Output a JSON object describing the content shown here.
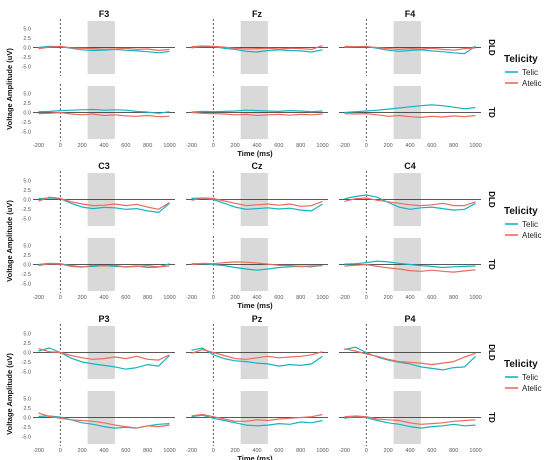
{
  "colors": {
    "telic": "#12b5c0",
    "atelic": "#ef6a5d",
    "window": "#d9d9d9"
  },
  "legend": {
    "title": "Telicity",
    "items": [
      "Telic",
      "Atelic"
    ]
  },
  "chart_data": {
    "type": "line",
    "x_axis": {
      "label": "Time (ms)",
      "xlim": [
        -250,
        1050
      ],
      "ticks": [
        -200,
        0,
        200,
        400,
        600,
        800,
        1000
      ],
      "tick_labels": [
        "-200",
        "0",
        "200",
        "400",
        "600",
        "800",
        "1000"
      ]
    },
    "y_axis": {
      "label": "Voltage Amplitude (uV)",
      "ylim": [
        -7,
        7
      ],
      "ticks": [
        5.0,
        2.5,
        0.0,
        -2.5,
        -5.0
      ],
      "tick_labels": [
        "5.0",
        "2.5",
        "0.0",
        "-2.5",
        "-5.0"
      ]
    },
    "rows": [
      "DLD",
      "TD"
    ],
    "shaded_window_ms": [
      250,
      500
    ],
    "onset_ms": 0,
    "x": [
      -200,
      -100,
      0,
      100,
      200,
      300,
      400,
      500,
      600,
      700,
      800,
      900,
      1000
    ],
    "series_names": [
      "Telic",
      "Atelic"
    ],
    "groups": [
      {
        "x_label": "Time (ms)",
        "panels": [
          {
            "electrode": "F3",
            "DLD": {
              "Telic": [
                0,
                0.3,
                0.2,
                -0.2,
                -0.6,
                -0.8,
                -0.7,
                -0.5,
                -0.7,
                -0.9,
                -1.1,
                -1.4,
                -1.0
              ],
              "Atelic": [
                -0.3,
                0.1,
                0.3,
                -0.1,
                -0.2,
                -0.3,
                -0.5,
                -0.4,
                -0.2,
                -0.5,
                -0.4,
                -0.8,
                -0.5
              ]
            },
            "TD": {
              "Telic": [
                0.2,
                0.3,
                0.5,
                0.6,
                0.7,
                0.8,
                0.6,
                0.7,
                0.6,
                0.3,
                0.1,
                -0.2,
                0.2
              ],
              "Atelic": [
                -0.3,
                -0.2,
                0,
                -0.4,
                -0.6,
                -0.4,
                -0.8,
                -0.6,
                -0.9,
                -1.0,
                -0.8,
                -1.1,
                -1.0
              ]
            }
          },
          {
            "electrode": "Fz",
            "DLD": {
              "Telic": [
                -0.1,
                0.3,
                0.2,
                -0.2,
                -0.5,
                -1.0,
                -1.2,
                -0.8,
                -0.6,
                -0.8,
                -0.9,
                -1.2,
                -0.6
              ],
              "Atelic": [
                0.2,
                0.4,
                0.3,
                0.1,
                -0.2,
                -0.4,
                -0.3,
                -0.2,
                -0.4,
                -0.2,
                -0.3,
                -0.5,
                0.5
              ]
            },
            "TD": {
              "Telic": [
                0.1,
                0.3,
                0.2,
                0.3,
                0.4,
                0.6,
                0.5,
                0.4,
                0.3,
                0.5,
                0.4,
                0.2,
                0.4
              ],
              "Atelic": [
                0,
                -0.2,
                -0.3,
                -0.4,
                -0.6,
                -0.5,
                -0.8,
                -0.6,
                -0.5,
                -0.7,
                -0.5,
                -0.6,
                -0.4
              ]
            }
          },
          {
            "electrode": "F4",
            "DLD": {
              "Telic": [
                0,
                0.2,
                0.3,
                -0.2,
                -0.7,
                -1.0,
                -0.8,
                -0.6,
                -0.9,
                -1.1,
                -1.4,
                -1.6,
                0.4
              ],
              "Atelic": [
                0.3,
                0.2,
                0.2,
                0,
                -0.3,
                -0.5,
                -0.3,
                -0.4,
                -0.2,
                -0.5,
                -0.7,
                -0.3,
                -0.1
              ]
            },
            "TD": {
              "Telic": [
                0,
                0.2,
                0.4,
                0.6,
                0.9,
                1.2,
                1.5,
                1.8,
                2.0,
                1.8,
                1.4,
                1.0,
                1.3
              ],
              "Atelic": [
                -0.3,
                -0.4,
                -0.3,
                -0.6,
                -1.0,
                -0.8,
                -1.1,
                -1.3,
                -1.0,
                -1.2,
                -0.9,
                -1.1,
                -0.8
              ]
            }
          }
        ]
      },
      {
        "x_label": "Time (ms)",
        "panels": [
          {
            "electrode": "C3",
            "DLD": {
              "Telic": [
                0.2,
                0.4,
                0.2,
                -1.0,
                -2.0,
                -2.4,
                -2.1,
                -2.2,
                -2.6,
                -2.4,
                -3.0,
                -3.4,
                -1.0
              ],
              "Atelic": [
                -0.4,
                0.6,
                0.3,
                -0.6,
                -1.2,
                -1.6,
                -1.5,
                -1.2,
                -1.6,
                -1.3,
                -2.0,
                -2.6,
                -0.8
              ]
            },
            "TD": {
              "Telic": [
                0,
                0.3,
                0.2,
                -0.3,
                -0.6,
                -0.5,
                -0.3,
                -0.5,
                -0.6,
                -0.4,
                -0.8,
                -0.7,
                0.2
              ],
              "Atelic": [
                -0.3,
                0.2,
                0.1,
                -0.5,
                -0.7,
                -0.2,
                -0.4,
                -0.2,
                -0.7,
                -0.5,
                -0.3,
                -0.6,
                -0.4
              ]
            }
          },
          {
            "electrode": "Cz",
            "DLD": {
              "Telic": [
                0.3,
                0.4,
                0,
                -1.0,
                -2.0,
                -2.6,
                -2.4,
                -2.2,
                -2.5,
                -2.3,
                -2.8,
                -3.0,
                -1.2
              ],
              "Atelic": [
                -0.2,
                0.4,
                0.3,
                -0.4,
                -1.0,
                -1.6,
                -1.4,
                -1.2,
                -1.5,
                -1.2,
                -1.8,
                -1.6,
                -0.5
              ]
            },
            "TD": {
              "Telic": [
                0.2,
                0.2,
                0,
                -0.3,
                -0.8,
                -1.2,
                -1.5,
                -1.2,
                -0.8,
                -0.6,
                -0.5,
                -0.6,
                -0.2
              ],
              "Atelic": [
                0,
                0.3,
                0.2,
                0.5,
                0.7,
                0.6,
                0.4,
                0.1,
                -0.2,
                -0.3,
                -0.5,
                -0.4,
                -0.3
              ]
            }
          },
          {
            "electrode": "C4",
            "DLD": {
              "Telic": [
                0.2,
                0.8,
                1.2,
                0.6,
                -0.8,
                -2.0,
                -2.6,
                -2.2,
                -2.0,
                -2.4,
                -2.8,
                -2.6,
                -1.0
              ],
              "Atelic": [
                -0.5,
                0.2,
                0.4,
                -0.2,
                -0.6,
                -1.0,
                -1.4,
                -1.6,
                -1.4,
                -1.0,
                -1.6,
                -1.6,
                -0.6
              ]
            },
            "TD": {
              "Telic": [
                0.1,
                0.2,
                0.5,
                0.9,
                0.7,
                0.3,
                0,
                -0.3,
                -0.5,
                -0.8,
                -0.6,
                -0.5,
                -0.4
              ],
              "Atelic": [
                -0.4,
                -0.2,
                0,
                -0.5,
                -0.9,
                -1.2,
                -1.6,
                -1.8,
                -1.5,
                -1.8,
                -2.0,
                -1.7,
                -1.4
              ]
            }
          }
        ]
      },
      {
        "x_label": "Time (ms)",
        "panels": [
          {
            "electrode": "P3",
            "DLD": {
              "Telic": [
                0.4,
                1.2,
                0,
                -1.5,
                -2.5,
                -3.0,
                -3.4,
                -3.8,
                -4.4,
                -4.0,
                -3.2,
                -3.6,
                -0.8
              ],
              "Atelic": [
                1.0,
                0.2,
                0,
                -0.8,
                -1.4,
                -1.8,
                -1.6,
                -1.2,
                -1.6,
                -1.0,
                -1.8,
                -2.0,
                -0.6
              ]
            },
            "TD": {
              "Telic": [
                0.3,
                0.4,
                0.1,
                -0.6,
                -1.4,
                -1.8,
                -2.4,
                -2.8,
                -2.6,
                -2.8,
                -2.2,
                -1.8,
                -1.6
              ],
              "Atelic": [
                1.2,
                0.3,
                -0.2,
                -0.6,
                -0.8,
                -1.0,
                -1.4,
                -2.0,
                -2.4,
                -2.8,
                -2.2,
                -2.4,
                -2.0
              ]
            }
          },
          {
            "electrode": "Pz",
            "DLD": {
              "Telic": [
                0.6,
                1.2,
                -0.6,
                -1.6,
                -2.2,
                -2.4,
                -2.8,
                -3.0,
                -3.6,
                -3.2,
                -3.4,
                -3.0,
                -1.0
              ],
              "Atelic": [
                -0.2,
                0.8,
                0,
                -0.8,
                -1.6,
                -1.8,
                -1.4,
                -1.0,
                -1.4,
                -1.2,
                -1.0,
                -0.6,
                0.2
              ]
            },
            "TD": {
              "Telic": [
                0.2,
                0.6,
                -0.2,
                -0.8,
                -1.4,
                -2.0,
                -2.2,
                -2.0,
                -1.6,
                -1.8,
                -1.2,
                -1.4,
                -0.8
              ],
              "Atelic": [
                0.4,
                0.8,
                0.2,
                -0.4,
                -1.0,
                -1.0,
                -0.6,
                -0.8,
                -0.4,
                -0.2,
                0,
                0.2,
                0.8
              ]
            }
          },
          {
            "electrode": "P4",
            "DLD": {
              "Telic": [
                0.8,
                1.4,
                0,
                -1.2,
                -2.0,
                -2.6,
                -3.0,
                -3.8,
                -4.2,
                -4.6,
                -4.0,
                -3.8,
                -1.0
              ],
              "Atelic": [
                1.0,
                0.4,
                -0.4,
                -1.0,
                -1.8,
                -2.4,
                -2.6,
                -2.8,
                -3.2,
                -2.8,
                -2.4,
                -1.2,
                -0.2
              ]
            },
            "TD": {
              "Telic": [
                -0.2,
                0.2,
                0,
                -0.8,
                -1.4,
                -1.8,
                -2.4,
                -2.8,
                -2.4,
                -2.2,
                -1.8,
                -2.2,
                -2.0
              ],
              "Atelic": [
                0.2,
                0.4,
                0.2,
                -0.4,
                -0.6,
                -0.8,
                -1.4,
                -1.8,
                -1.6,
                -1.4,
                -1.0,
                -0.8,
                -0.6
              ]
            }
          }
        ]
      }
    ]
  }
}
